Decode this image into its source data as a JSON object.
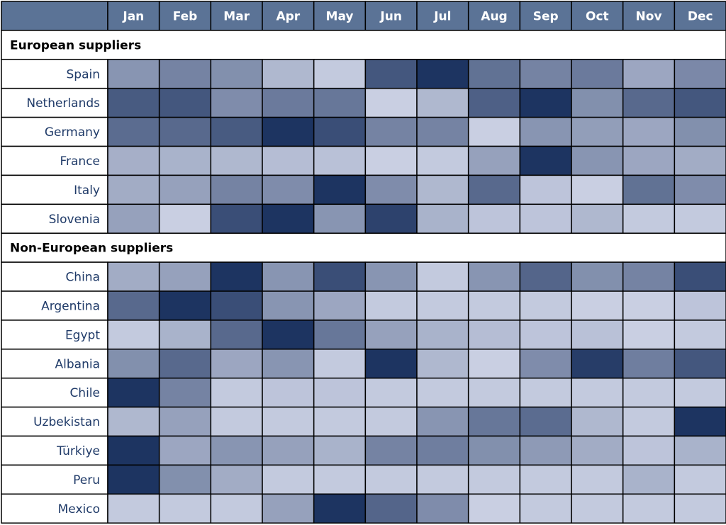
{
  "chart_data": {
    "type": "heatmap",
    "title": "",
    "xlabel": "",
    "ylabel": "",
    "columns": [
      "Jan",
      "Feb",
      "Mar",
      "Apr",
      "May",
      "Jun",
      "Jul",
      "Aug",
      "Sep",
      "Oct",
      "Nov",
      "Dec"
    ],
    "value_range": [
      0,
      1
    ],
    "groups": [
      {
        "label": "European suppliers",
        "rows": [
          {
            "name": "Spain",
            "values": [
              0.45,
              0.55,
              0.48,
              0.25,
              0.15,
              0.8,
              1.0,
              0.65,
              0.55,
              0.6,
              0.35,
              0.52
            ]
          },
          {
            "name": "Netherlands",
            "values": [
              0.78,
              0.8,
              0.5,
              0.6,
              0.62,
              0.12,
              0.25,
              0.75,
              1.0,
              0.48,
              0.7,
              0.8
            ]
          },
          {
            "name": "Germany",
            "values": [
              0.68,
              0.7,
              0.78,
              1.0,
              0.85,
              0.55,
              0.55,
              0.12,
              0.45,
              0.4,
              0.35,
              0.48
            ]
          },
          {
            "name": "France",
            "values": [
              0.3,
              0.28,
              0.25,
              0.22,
              0.2,
              0.12,
              0.15,
              0.38,
              1.0,
              0.45,
              0.35,
              0.32
            ]
          },
          {
            "name": "Italy",
            "values": [
              0.32,
              0.38,
              0.55,
              0.5,
              1.0,
              0.5,
              0.25,
              0.7,
              0.18,
              0.12,
              0.65,
              0.5
            ]
          },
          {
            "name": "Slovenia",
            "values": [
              0.38,
              0.12,
              0.85,
              1.0,
              0.45,
              0.92,
              0.28,
              0.18,
              0.18,
              0.25,
              0.15,
              0.15
            ]
          }
        ]
      },
      {
        "label": "Non-European suppliers",
        "rows": [
          {
            "name": "China",
            "values": [
              0.32,
              0.38,
              1.0,
              0.45,
              0.85,
              0.45,
              0.15,
              0.45,
              0.72,
              0.48,
              0.55,
              0.85
            ]
          },
          {
            "name": "Argentina",
            "values": [
              0.7,
              1.0,
              0.85,
              0.45,
              0.35,
              0.15,
              0.15,
              0.15,
              0.15,
              0.12,
              0.12,
              0.18
            ]
          },
          {
            "name": "Egypt",
            "values": [
              0.15,
              0.28,
              0.7,
              1.0,
              0.62,
              0.38,
              0.28,
              0.22,
              0.18,
              0.2,
              0.12,
              0.15
            ]
          },
          {
            "name": "Albania",
            "values": [
              0.48,
              0.7,
              0.35,
              0.45,
              0.15,
              1.0,
              0.25,
              0.12,
              0.5,
              0.95,
              0.58,
              0.8
            ]
          },
          {
            "name": "Chile",
            "values": [
              1.0,
              0.55,
              0.15,
              0.18,
              0.18,
              0.15,
              0.15,
              0.15,
              0.15,
              0.15,
              0.15,
              0.15
            ]
          },
          {
            "name": "Uzbekistan",
            "values": [
              0.25,
              0.38,
              0.15,
              0.15,
              0.15,
              0.15,
              0.45,
              0.62,
              0.68,
              0.25,
              0.15,
              1.0
            ]
          },
          {
            "name": "Türkiye",
            "values": [
              1.0,
              0.35,
              0.45,
              0.38,
              0.28,
              0.55,
              0.58,
              0.48,
              0.42,
              0.32,
              0.18,
              0.28
            ]
          },
          {
            "name": "Peru",
            "values": [
              1.0,
              0.48,
              0.32,
              0.15,
              0.15,
              0.15,
              0.15,
              0.15,
              0.15,
              0.15,
              0.28,
              0.15
            ]
          },
          {
            "name": "Mexico",
            "values": [
              0.15,
              0.15,
              0.15,
              0.38,
              1.0,
              0.72,
              0.5,
              0.12,
              0.15,
              0.15,
              0.15,
              0.15
            ]
          }
        ]
      }
    ],
    "colors": {
      "header_fill": "#5b7396",
      "low": "#e0e4f4",
      "high": "#1d3461",
      "grid": "#000000",
      "group_text": "#000000",
      "row_text": "#1f3a68",
      "header_text": "#ffffff"
    }
  }
}
